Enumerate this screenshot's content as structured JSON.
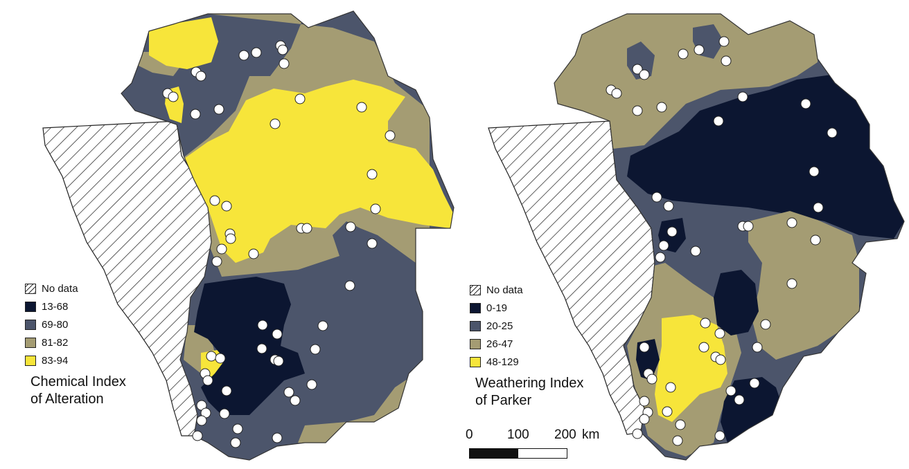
{
  "colors": {
    "class1": "#0c1631",
    "class2": "#4c556b",
    "class3": "#a49c73",
    "class4": "#f7e53a",
    "hatch": "#333333",
    "sample": "#ffffff"
  },
  "left_map": {
    "title_line1": "Chemical Index",
    "title_line2": "of Alteration",
    "legend": [
      "No data",
      "13-68",
      "69-80",
      "81-82",
      "83-94"
    ]
  },
  "right_map": {
    "title_line1": "Weathering Index",
    "title_line2": "of Parker",
    "legend": [
      "No data",
      "0-19",
      "20-25",
      "26-47",
      "48-129"
    ]
  },
  "scale": {
    "labels": [
      "0",
      "100",
      "200"
    ],
    "unit": "km"
  }
}
